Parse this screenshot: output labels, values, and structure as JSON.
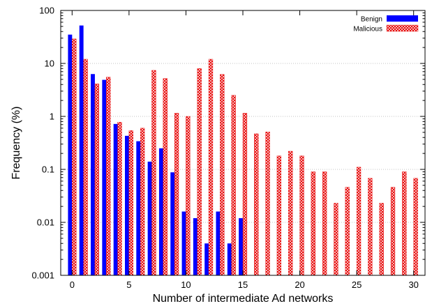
{
  "chart_data": {
    "type": "bar",
    "title": "",
    "xlabel": "Number of intermediate Ad networks",
    "ylabel": "Frequency (%)",
    "yscale": "log",
    "ylim": [
      0.001,
      100
    ],
    "xlim": [
      -1,
      31
    ],
    "xticks": [
      0,
      5,
      10,
      15,
      20,
      25,
      30
    ],
    "yticks": [
      {
        "value": 0.001,
        "label": "0.001"
      },
      {
        "value": 0.01,
        "label": "0.01"
      },
      {
        "value": 0.1,
        "label": "0.1"
      },
      {
        "value": 1,
        "label": "1"
      },
      {
        "value": 10,
        "label": "10"
      },
      {
        "value": 100,
        "label": "100"
      }
    ],
    "grid": "horizontal dotted at major y ticks",
    "legend_position": "top-right",
    "series": [
      {
        "name": "Benign",
        "color": "#0000ff",
        "pattern": "solid",
        "x": [
          0,
          1,
          2,
          3,
          4,
          5,
          6,
          7,
          8,
          9,
          10,
          11,
          12,
          13,
          14,
          15
        ],
        "values": [
          35,
          52,
          6.3,
          4.9,
          0.72,
          0.43,
          0.34,
          0.14,
          0.25,
          0.088,
          0.016,
          0.012,
          0.004,
          0.016,
          0.004,
          0.012
        ]
      },
      {
        "name": "Malicious",
        "color": "#e60000",
        "pattern": "crosshatch",
        "x": [
          0,
          1,
          2,
          3,
          4,
          5,
          6,
          7,
          8,
          9,
          10,
          11,
          12,
          13,
          14,
          15,
          16,
          17,
          18,
          19,
          20,
          21,
          22,
          23,
          24,
          25,
          26,
          27,
          28,
          29,
          30
        ],
        "values": [
          29,
          12,
          4.1,
          5.5,
          0.78,
          0.54,
          0.6,
          7.4,
          5.2,
          1.15,
          1.0,
          8.0,
          12,
          6.2,
          2.5,
          1.15,
          0.47,
          0.51,
          0.18,
          0.22,
          0.18,
          0.09,
          0.09,
          0.023,
          0.046,
          0.11,
          0.068,
          0.023,
          0.046,
          0.09,
          0.068
        ]
      }
    ]
  }
}
